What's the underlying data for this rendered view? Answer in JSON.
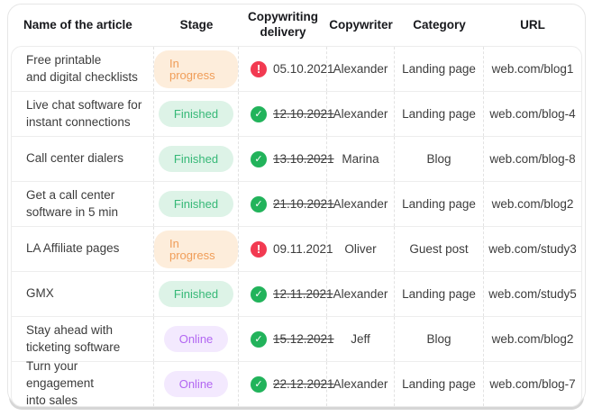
{
  "table": {
    "header": {
      "columns": [
        "Name of the article",
        "Stage",
        "Copywriting\ndelivery",
        "Copywriter",
        "Category",
        "URL"
      ]
    },
    "rows": [
      {
        "name": "Free printable\nand digital checklists",
        "stage": "In progress",
        "stage_variant": "in-progress",
        "delivery_date": "05.10.2021",
        "delivery_status": "alert",
        "delivery_struck": false,
        "copywriter": "Alexander",
        "category": "Landing page",
        "url": "web.com/blog1"
      },
      {
        "name": "Live chat software for\ninstant connections",
        "stage": "Finished",
        "stage_variant": "finished",
        "delivery_date": "12.10.2021",
        "delivery_status": "done",
        "delivery_struck": true,
        "copywriter": "Alexander",
        "category": "Landing page",
        "url": "web.com/blog-4"
      },
      {
        "name": "Call center dialers",
        "stage": "Finished",
        "stage_variant": "finished",
        "delivery_date": "13.10.2021",
        "delivery_status": "done",
        "delivery_struck": true,
        "copywriter": "Marina",
        "category": "Blog",
        "url": "web.com/blog-8"
      },
      {
        "name": "Get a call center\nsoftware in 5 min",
        "stage": "Finished",
        "stage_variant": "finished",
        "delivery_date": "21.10.2021",
        "delivery_status": "done",
        "delivery_struck": true,
        "copywriter": "Alexander",
        "category": "Landing page",
        "url": "web.com/blog2"
      },
      {
        "name": "LA Affiliate pages",
        "stage": "In progress",
        "stage_variant": "in-progress",
        "delivery_date": "09.11.2021",
        "delivery_status": "alert",
        "delivery_struck": false,
        "copywriter": "Oliver",
        "category": "Guest post",
        "url": "web.com/study3"
      },
      {
        "name": "GMX",
        "stage": "Finished",
        "stage_variant": "finished",
        "delivery_date": "12.11.2021",
        "delivery_status": "done",
        "delivery_struck": true,
        "copywriter": "Alexander",
        "category": "Landing page",
        "url": "web.com/study5"
      },
      {
        "name": "Stay ahead with\nticketing software",
        "stage": "Online",
        "stage_variant": "online",
        "delivery_date": "15.12.2021",
        "delivery_status": "done",
        "delivery_struck": true,
        "copywriter": "Jeff",
        "category": "Blog",
        "url": "web.com/blog2"
      },
      {
        "name": "Turn your engagement\ninto sales",
        "stage": "Online",
        "stage_variant": "online",
        "delivery_date": "22.12.2021",
        "delivery_status": "done",
        "delivery_struck": true,
        "copywriter": "Alexander",
        "category": "Landing page",
        "url": "web.com/blog-7"
      }
    ]
  },
  "icons": {
    "alert": "alert-circle-icon",
    "done": "check-circle-icon"
  },
  "colors": {
    "stage_in_progress_text": "#F09D58",
    "stage_in_progress_bg": "#FDEDDB",
    "stage_finished_text": "#36B877",
    "stage_finished_bg": "#DDF3E7",
    "stage_online_text": "#B266F2",
    "stage_online_bg": "#F3E9FE",
    "status_alert": "#F23A51",
    "status_done": "#22B35B",
    "body_text": "#3C3C3C",
    "header_text": "#17181C"
  }
}
